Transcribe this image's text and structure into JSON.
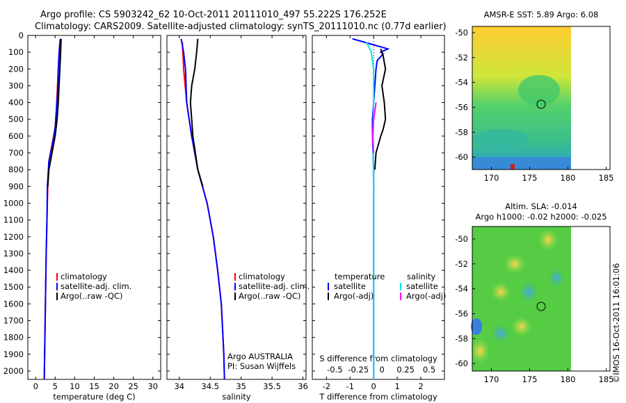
{
  "header": {
    "line1": "Argo profile: CS 5903242_62 10-Oct-2011 20111010_497 55.222S 176.252E",
    "line2": "Climatology: CARS2009. Satellite-adjusted climatology: synTS_20111010.nc (0.77d earlier)"
  },
  "depth_ticks": [
    0,
    100,
    200,
    300,
    400,
    500,
    600,
    700,
    800,
    900,
    1000,
    1100,
    1200,
    1300,
    1400,
    1500,
    1600,
    1700,
    1800,
    1900,
    2000
  ],
  "legend_items": [
    "climatology",
    "satellite-adj. clim.",
    "Argo(..raw -QC)"
  ],
  "colors": {
    "climatology": "#ff0000",
    "satellite": "#0000ff",
    "argo": "#000000",
    "sal_sat": "#00e5e5",
    "sal_argo": "#ff00ff"
  },
  "chart_data": [
    {
      "type": "line",
      "xlabel": "temperature (deg C)",
      "xticks": [
        0,
        5,
        10,
        15,
        20,
        25,
        30
      ],
      "xlim": [
        -2,
        32
      ],
      "ylim": [
        2050,
        0
      ],
      "series": [
        {
          "name": "climatology",
          "color": "#ff0000",
          "points": [
            [
              6.2,
              40
            ],
            [
              6.1,
              100
            ],
            [
              5.8,
              200
            ],
            [
              5.5,
              350
            ],
            [
              5.3,
              450
            ],
            [
              5.0,
              550
            ],
            [
              4.2,
              650
            ],
            [
              3.4,
              750
            ],
            [
              3.1,
              900
            ],
            [
              2.9,
              1100
            ],
            [
              2.7,
              1300
            ],
            [
              2.5,
              1600
            ],
            [
              2.3,
              1900
            ],
            [
              2.2,
              2050
            ]
          ]
        },
        {
          "name": "satellite-adj. clim.",
          "color": "#0000ff",
          "points": [
            [
              6.3,
              20
            ],
            [
              6.0,
              100
            ],
            [
              5.8,
              200
            ],
            [
              5.6,
              350
            ],
            [
              5.3,
              450
            ],
            [
              5.0,
              550
            ],
            [
              4.3,
              650
            ],
            [
              3.4,
              750
            ],
            [
              3.0,
              900
            ],
            [
              2.9,
              1100
            ],
            [
              2.7,
              1300
            ],
            [
              2.5,
              1600
            ],
            [
              2.3,
              1900
            ],
            [
              2.2,
              2050
            ]
          ]
        },
        {
          "name": "Argo(..raw -QC)",
          "color": "#000000",
          "points": [
            [
              6.5,
              20
            ],
            [
              6.4,
              100
            ],
            [
              6.2,
              200
            ],
            [
              6.0,
              300
            ],
            [
              5.8,
              400
            ],
            [
              5.5,
              500
            ],
            [
              5.0,
              600
            ],
            [
              4.2,
              700
            ],
            [
              3.4,
              800
            ],
            [
              3.1,
              900
            ]
          ]
        }
      ],
      "legend": [
        "climatology",
        "satellite-adj. clim.",
        "Argo(..raw -QC)"
      ]
    },
    {
      "type": "line",
      "xlabel": "salinity",
      "xticks": [
        34,
        34.5,
        35,
        35.5,
        36
      ],
      "xlim": [
        33.8,
        36.05
      ],
      "ylim": [
        2050,
        0
      ],
      "series": [
        {
          "name": "climatology",
          "color": "#ff0000",
          "points": [
            [
              34.05,
              40
            ],
            [
              34.07,
              200
            ],
            [
              34.12,
              400
            ],
            [
              34.2,
              600
            ],
            [
              34.3,
              800
            ],
            [
              34.45,
              1000
            ],
            [
              34.55,
              1200
            ],
            [
              34.62,
              1400
            ],
            [
              34.68,
              1600
            ],
            [
              34.72,
              1900
            ],
            [
              34.73,
              2050
            ]
          ]
        },
        {
          "name": "satellite-adj. clim.",
          "color": "#0000ff",
          "points": [
            [
              34.03,
              20
            ],
            [
              34.07,
              100
            ],
            [
              34.1,
              200
            ],
            [
              34.12,
              400
            ],
            [
              34.2,
              600
            ],
            [
              34.3,
              800
            ],
            [
              34.45,
              1000
            ],
            [
              34.55,
              1200
            ],
            [
              34.62,
              1400
            ],
            [
              34.68,
              1600
            ],
            [
              34.72,
              1900
            ],
            [
              34.73,
              2050
            ]
          ]
        },
        {
          "name": "Argo(..raw -QC)",
          "color": "#000000",
          "points": [
            [
              34.3,
              20
            ],
            [
              34.28,
              100
            ],
            [
              34.25,
              200
            ],
            [
              34.2,
              300
            ],
            [
              34.18,
              400
            ],
            [
              34.2,
              500
            ],
            [
              34.22,
              600
            ],
            [
              34.3,
              800
            ],
            [
              34.38,
              900
            ]
          ]
        }
      ],
      "legend": [
        "climatology",
        "satellite-adj. clim.",
        "Argo(..raw -QC)"
      ],
      "annotation": [
        "Argo AUSTRALIA",
        "PI: Susan Wijffels"
      ]
    },
    {
      "type": "line",
      "xlabel": "T difference from climatology",
      "xticks": [
        -2,
        -1,
        0,
        1,
        2
      ],
      "top_xlabel": "S difference from climatology",
      "top_xticks": [
        "-0.5",
        "-0.25",
        "0",
        "0.25",
        "0.5"
      ],
      "xlim": [
        -2.6,
        3
      ],
      "ylim": [
        2050,
        0
      ],
      "series": [
        {
          "name": "temperature satellite",
          "color": "#0000ff",
          "points": [
            [
              -0.9,
              20
            ],
            [
              0.1,
              60
            ],
            [
              0.6,
              80
            ],
            [
              0.3,
              100
            ],
            [
              0.4,
              110
            ],
            [
              0.15,
              150
            ],
            [
              0.1,
              200
            ],
            [
              0.05,
              300
            ],
            [
              0.0,
              400
            ],
            [
              -0.05,
              500
            ],
            [
              -0.05,
              600
            ],
            [
              0.0,
              800
            ],
            [
              0.0,
              1100
            ],
            [
              0.0,
              1500
            ],
            [
              0.0,
              2050
            ]
          ]
        },
        {
          "name": "temperature Argo(-adj)",
          "color": "#000000",
          "points": [
            [
              0.3,
              80
            ],
            [
              0.4,
              120
            ],
            [
              0.5,
              200
            ],
            [
              0.35,
              300
            ],
            [
              0.45,
              400
            ],
            [
              0.5,
              500
            ],
            [
              0.4,
              560
            ],
            [
              0.3,
              600
            ],
            [
              0.1,
              700
            ],
            [
              0.05,
              800
            ]
          ]
        },
        {
          "name": "salinity satellite",
          "color": "#00e5e5",
          "points": [
            [
              -0.3,
              40
            ],
            [
              -0.1,
              100
            ],
            [
              0.0,
              200
            ],
            [
              0.0,
              400
            ],
            [
              -0.02,
              600
            ],
            [
              0.0,
              1000
            ],
            [
              0.0,
              2050
            ]
          ]
        },
        {
          "name": "salinity Argo(-adj)",
          "color": "#ff00ff",
          "points": [
            [
              0.1,
              400
            ],
            [
              0.0,
              500
            ],
            [
              -0.05,
              600
            ],
            [
              0.0,
              700
            ]
          ]
        }
      ],
      "legend_headers": [
        "temperature",
        "salinity"
      ],
      "legend_left": [
        "satellite",
        "Argo(-adj)"
      ],
      "legend_right": [
        "satellite",
        "Argo(-adj)"
      ]
    }
  ],
  "maps": [
    {
      "title": "AMSR-E SST: 5.89 Argo: 6.08",
      "xticks": [
        170,
        175,
        180,
        185
      ],
      "yticks": [
        -50,
        -52,
        -54,
        -56,
        -58,
        -60
      ]
    },
    {
      "title_line1": "Altim. SLA: -0.014",
      "title_line2": "Argo h1000: -0.02 h2000: -0.025",
      "xticks": [
        170,
        175,
        180,
        185
      ],
      "yticks": [
        -50,
        -52,
        -54,
        -56,
        -58,
        -60
      ]
    }
  ],
  "footer_stamp": "©IMOS 16-Oct-2011 16:01:06"
}
